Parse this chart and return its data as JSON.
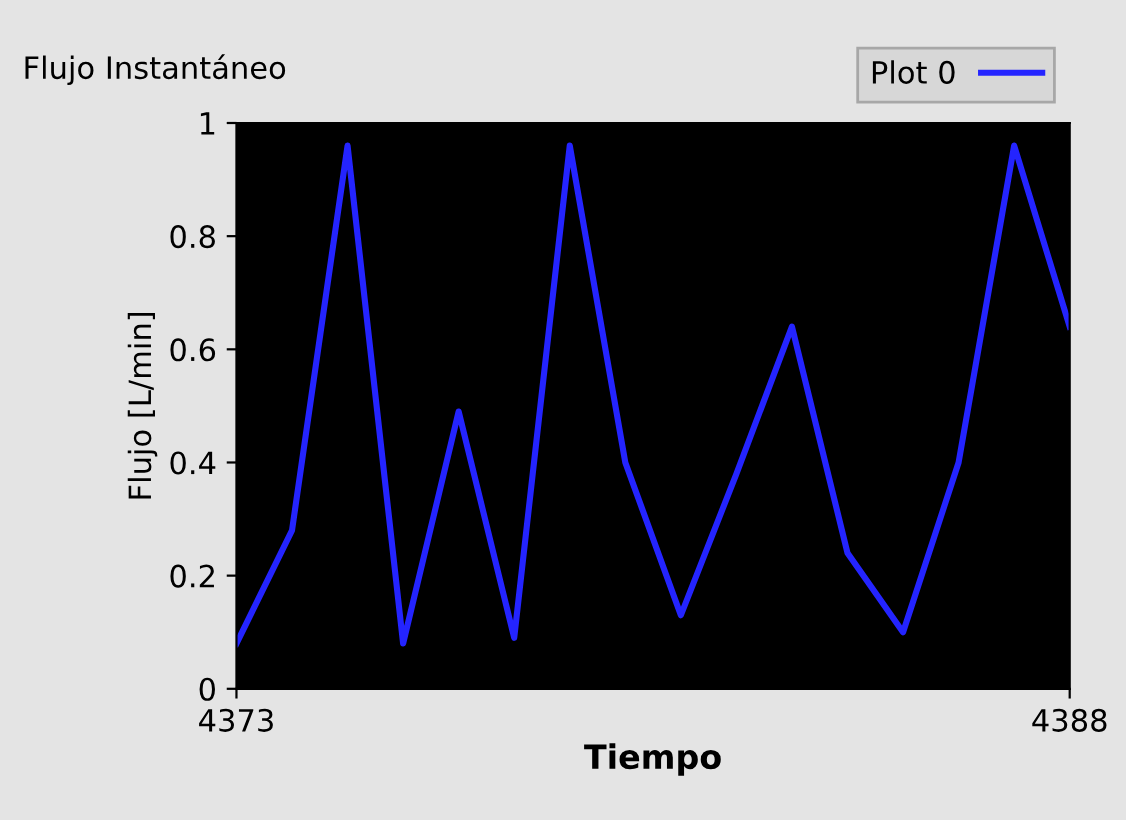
{
  "chart_data": {
    "type": "line",
    "title": "Flujo Instantáneo",
    "xlabel": "Tiempo",
    "ylabel": "Flujo [L/min]",
    "x": [
      4373,
      4374,
      4375,
      4376,
      4377,
      4378,
      4379,
      4380,
      4381,
      4382,
      4383,
      4384,
      4385,
      4386,
      4387,
      4388
    ],
    "series": [
      {
        "name": "Plot 0",
        "color": "#2424ff",
        "values": [
          0.08,
          0.28,
          0.96,
          0.08,
          0.49,
          0.09,
          0.96,
          0.4,
          0.13,
          0.38,
          0.64,
          0.24,
          0.1,
          0.4,
          0.96,
          0.64
        ]
      }
    ],
    "xlim": [
      4373,
      4388
    ],
    "xticks": [
      4373,
      4388
    ],
    "ylim": [
      0,
      1
    ],
    "yticks": [
      {
        "value": 0,
        "label": "0"
      },
      {
        "value": 0.2,
        "label": "0.2"
      },
      {
        "value": 0.4,
        "label": "0.4"
      },
      {
        "value": 0.6,
        "label": "0.6"
      },
      {
        "value": 0.8,
        "label": "0.8"
      },
      {
        "value": 1,
        "label": "1"
      }
    ],
    "grid": false,
    "legend": "top right",
    "marker": "none",
    "line_style": "solid"
  }
}
